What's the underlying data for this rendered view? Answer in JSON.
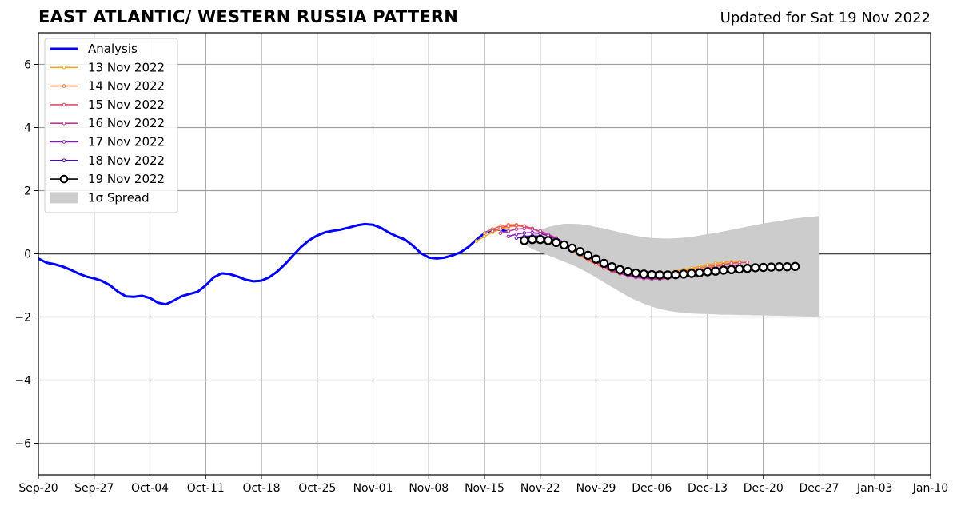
{
  "header": {
    "title": "EAST ATLANTIC/ WESTERN RUSSIA PATTERN",
    "updated": "Updated for Sat 19 Nov 2022"
  },
  "chart_data": {
    "type": "line",
    "title": "EAST ATLANTIC/ WESTERN RUSSIA PATTERN",
    "subtitle": "Updated for Sat 19 Nov 2022",
    "x_range": [
      "2022-09-20",
      "2023-01-10"
    ],
    "ylim": [
      -7,
      7
    ],
    "grid": true,
    "legend_position": "top-left",
    "x_tick_labels": [
      "Sep-20",
      "Sep-27",
      "Oct-04",
      "Oct-11",
      "Oct-18",
      "Oct-25",
      "Nov-01",
      "Nov-08",
      "Nov-15",
      "Nov-22",
      "Nov-29",
      "Dec-06",
      "Dec-13",
      "Dec-20",
      "Dec-27",
      "Jan-03",
      "Jan-10"
    ],
    "x_tick_dates": [
      "2022-09-20",
      "2022-09-27",
      "2022-10-04",
      "2022-10-11",
      "2022-10-18",
      "2022-10-25",
      "2022-11-01",
      "2022-11-08",
      "2022-11-15",
      "2022-11-22",
      "2022-11-29",
      "2022-12-06",
      "2022-12-13",
      "2022-12-20",
      "2022-12-27",
      "2023-01-03",
      "2023-01-10"
    ],
    "y_ticks": [
      -6,
      -4,
      -2,
      0,
      2,
      4,
      6
    ],
    "y_tick_labels": [
      "−6",
      "−4",
      "−2",
      "0",
      "2",
      "4",
      "6"
    ],
    "analysis": {
      "name": "Analysis",
      "color": "#0000ff",
      "start": "2022-09-20",
      "values": [
        -0.15,
        -0.28,
        -0.33,
        -0.4,
        -0.5,
        -0.62,
        -0.72,
        -0.78,
        -0.86,
        -1.0,
        -1.2,
        -1.35,
        -1.36,
        -1.33,
        -1.4,
        -1.55,
        -1.6,
        -1.48,
        -1.34,
        -1.27,
        -1.2,
        -1.0,
        -0.75,
        -0.62,
        -0.64,
        -0.72,
        -0.82,
        -0.87,
        -0.85,
        -0.74,
        -0.56,
        -0.32,
        -0.04,
        0.22,
        0.43,
        0.58,
        0.68,
        0.73,
        0.77,
        0.83,
        0.9,
        0.94,
        0.92,
        0.82,
        0.67,
        0.55,
        0.45,
        0.26,
        0.02,
        -0.12,
        -0.15,
        -0.12,
        -0.05,
        0.05,
        0.22,
        0.45,
        0.65,
        0.76,
        0.76,
        0.7
      ]
    },
    "forecasts": [
      {
        "name": "13 Nov 2022",
        "color": "#f5a623",
        "start": "2022-11-14",
        "values": [
          0.4,
          0.55,
          0.68,
          0.78,
          0.85,
          0.88,
          0.86,
          0.8,
          0.7,
          0.58,
          0.45,
          0.3,
          0.15,
          0.0,
          -0.15,
          -0.28,
          -0.4,
          -0.48,
          -0.55,
          -0.6,
          -0.63,
          -0.65,
          -0.65,
          -0.63,
          -0.6,
          -0.55,
          -0.5,
          -0.45,
          -0.4,
          -0.35,
          -0.3,
          -0.27,
          -0.25,
          -0.25
        ]
      },
      {
        "name": "14 Nov 2022",
        "color": "#ef7a3c",
        "start": "2022-11-15",
        "values": [
          0.65,
          0.78,
          0.88,
          0.92,
          0.92,
          0.88,
          0.8,
          0.68,
          0.55,
          0.4,
          0.25,
          0.1,
          -0.05,
          -0.2,
          -0.33,
          -0.45,
          -0.54,
          -0.6,
          -0.65,
          -0.68,
          -0.7,
          -0.7,
          -0.68,
          -0.65,
          -0.6,
          -0.55,
          -0.5,
          -0.45,
          -0.4,
          -0.36,
          -0.33,
          -0.3,
          -0.28
        ]
      },
      {
        "name": "15 Nov 2022",
        "color": "#e05068",
        "start": "2022-11-16",
        "values": [
          0.72,
          0.82,
          0.88,
          0.9,
          0.87,
          0.8,
          0.7,
          0.57,
          0.43,
          0.28,
          0.13,
          -0.02,
          -0.17,
          -0.32,
          -0.45,
          -0.55,
          -0.63,
          -0.68,
          -0.72,
          -0.74,
          -0.75,
          -0.74,
          -0.72,
          -0.68,
          -0.63,
          -0.58,
          -0.52,
          -0.46,
          -0.4,
          -0.35,
          -0.3,
          -0.28,
          -0.27
        ]
      },
      {
        "name": "16 Nov 2022",
        "color": "#c03a9a",
        "start": "2022-11-17",
        "values": [
          0.65,
          0.72,
          0.78,
          0.8,
          0.78,
          0.72,
          0.62,
          0.5,
          0.36,
          0.21,
          0.06,
          -0.1,
          -0.25,
          -0.4,
          -0.52,
          -0.62,
          -0.7,
          -0.75,
          -0.78,
          -0.8,
          -0.8,
          -0.78,
          -0.75,
          -0.71,
          -0.66,
          -0.6,
          -0.54,
          -0.48,
          -0.43,
          -0.39,
          -0.35
        ]
      },
      {
        "name": "17 Nov 2022",
        "color": "#8c1ab8",
        "start": "2022-11-18",
        "values": [
          0.55,
          0.62,
          0.66,
          0.67,
          0.64,
          0.58,
          0.48,
          0.36,
          0.22,
          0.07,
          -0.08,
          -0.23,
          -0.38,
          -0.5,
          -0.6,
          -0.67,
          -0.72,
          -0.75,
          -0.77,
          -0.77,
          -0.75,
          -0.72,
          -0.68,
          -0.64,
          -0.6,
          -0.56,
          -0.52,
          -0.48,
          -0.45
        ]
      },
      {
        "name": "18 Nov 2022",
        "color": "#4b0fa0",
        "start": "2022-11-19",
        "values": [
          0.5,
          0.55,
          0.57,
          0.55,
          0.5,
          0.42,
          0.32,
          0.2,
          0.07,
          -0.07,
          -0.2,
          -0.33,
          -0.45,
          -0.55,
          -0.62,
          -0.67,
          -0.7,
          -0.72,
          -0.72,
          -0.71,
          -0.69,
          -0.66,
          -0.63,
          -0.6,
          -0.57,
          -0.54,
          -0.5,
          -0.47
        ]
      },
      {
        "name": "19 Nov 2022",
        "color": "#000000",
        "start": "2022-11-20",
        "values": [
          0.42,
          0.45,
          0.45,
          0.42,
          0.36,
          0.28,
          0.18,
          0.07,
          -0.05,
          -0.17,
          -0.3,
          -0.41,
          -0.5,
          -0.56,
          -0.61,
          -0.64,
          -0.66,
          -0.67,
          -0.67,
          -0.66,
          -0.64,
          -0.62,
          -0.6,
          -0.57,
          -0.55,
          -0.52,
          -0.5,
          -0.48,
          -0.46,
          -0.44,
          -0.43,
          -0.42,
          -0.41,
          -0.41,
          -0.4
        ]
      }
    ],
    "spread": {
      "name": "1σ Spread",
      "color": "#cccccc",
      "start": "2022-11-20",
      "upper": [
        0.3,
        0.6,
        0.75,
        0.85,
        0.9,
        0.95,
        0.95,
        0.94,
        0.9,
        0.85,
        0.8,
        0.74,
        0.68,
        0.62,
        0.57,
        0.53,
        0.5,
        0.49,
        0.48,
        0.49,
        0.51,
        0.54,
        0.58,
        0.62,
        0.66,
        0.71,
        0.76,
        0.81,
        0.86,
        0.91,
        0.96,
        1.0,
        1.04,
        1.08,
        1.12,
        1.15,
        1.17,
        1.2
      ],
      "lower": [
        0.3,
        0.15,
        0.05,
        -0.05,
        -0.15,
        -0.25,
        -0.35,
        -0.47,
        -0.6,
        -0.75,
        -0.9,
        -1.05,
        -1.2,
        -1.35,
        -1.47,
        -1.58,
        -1.67,
        -1.75,
        -1.8,
        -1.84,
        -1.87,
        -1.89,
        -1.9,
        -1.91,
        -1.92,
        -1.93,
        -1.93,
        -1.94,
        -1.94,
        -1.95,
        -1.95,
        -1.96,
        -1.96,
        -1.97,
        -1.97,
        -1.98,
        -1.99,
        -2.0
      ]
    },
    "legend": [
      "Analysis",
      "13 Nov 2022",
      "14 Nov 2022",
      "15 Nov 2022",
      "16 Nov 2022",
      "17 Nov 2022",
      "18 Nov 2022",
      "19 Nov 2022",
      "1σ Spread"
    ]
  }
}
